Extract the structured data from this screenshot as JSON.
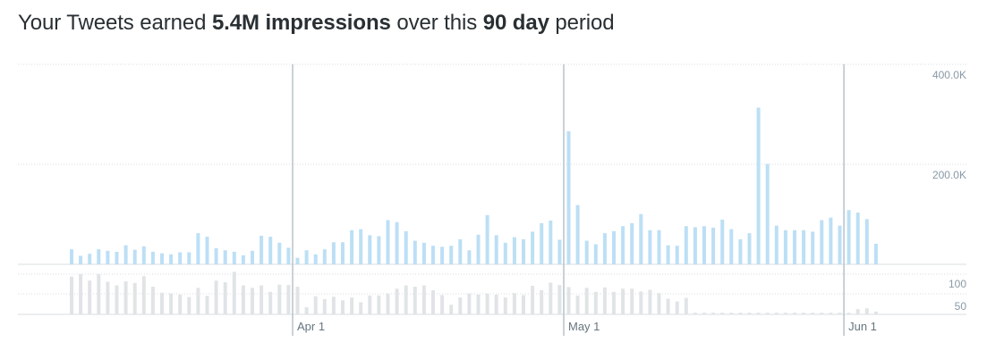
{
  "headline": {
    "prefix": "Your Tweets earned",
    "metric": "5.4M impressions",
    "middle": "over this",
    "period": "90 day",
    "suffix": "period"
  },
  "colors": {
    "impressions_bar": "#bcdff5",
    "engagement_bar": "#e1e4e6",
    "gridline": "#d8dde1",
    "month_marker": "#b8c3cc",
    "axis_label": "#8899a6"
  },
  "chart_data": [
    {
      "type": "bar",
      "title": "",
      "xlabel": "",
      "ylabel": "",
      "y_ticks": [
        "200.0K",
        "400.0K"
      ],
      "ylim": [
        0,
        400000
      ],
      "grid": true,
      "month_labels": [
        {
          "label": "Apr 1",
          "index": 25
        },
        {
          "label": "May 1",
          "index": 55
        },
        {
          "label": "Jun 1",
          "index": 86
        }
      ],
      "series": [
        {
          "values": [
            30000,
            17000,
            21000,
            30000,
            27000,
            25000,
            38000,
            29000,
            36000,
            25000,
            22000,
            20000,
            24000,
            24000,
            62000,
            55000,
            32000,
            28000,
            25000,
            18000,
            27000,
            57000,
            55000,
            43000,
            33000,
            13000,
            28000,
            20000,
            30000,
            44000,
            44000,
            68000,
            70000,
            58000,
            56000,
            88000,
            84000,
            66000,
            47000,
            43000,
            37000,
            35000,
            37000,
            50000,
            28000,
            59000,
            98000,
            58000,
            43000,
            54000,
            50000,
            65000,
            82000,
            87000,
            49000,
            265000,
            118000,
            47000,
            40000,
            62000,
            66000,
            76000,
            82000,
            100000,
            68000,
            68000,
            38000,
            37000,
            76000,
            74000,
            76000,
            73000,
            89000,
            70000,
            50000,
            62000,
            312000,
            200000,
            77000,
            68000,
            68000,
            68000,
            65000,
            88000,
            93000,
            77000,
            108000,
            103000,
            90000,
            41000
          ]
        }
      ]
    },
    {
      "type": "bar",
      "title": "",
      "xlabel": "",
      "ylabel": "",
      "y_ticks": [
        "50",
        "100"
      ],
      "ylim": [
        0,
        125
      ],
      "grid": true,
      "series": [
        {
          "values": [
            94,
            100,
            84,
            100,
            81,
            72,
            82,
            78,
            95,
            69,
            54,
            52,
            49,
            43,
            66,
            46,
            84,
            80,
            106,
            72,
            66,
            72,
            56,
            74,
            73,
            69,
            18,
            45,
            38,
            44,
            35,
            42,
            30,
            47,
            47,
            52,
            64,
            72,
            69,
            72,
            60,
            48,
            24,
            42,
            52,
            49,
            52,
            49,
            42,
            53,
            48,
            71,
            60,
            79,
            73,
            68,
            47,
            66,
            56,
            67,
            56,
            64,
            64,
            57,
            61,
            53,
            39,
            32,
            41,
            4,
            4,
            4,
            4,
            4,
            4,
            4,
            4,
            4,
            4,
            4,
            4,
            4,
            4,
            4,
            4,
            4,
            4,
            13,
            15,
            7
          ]
        }
      ]
    }
  ]
}
